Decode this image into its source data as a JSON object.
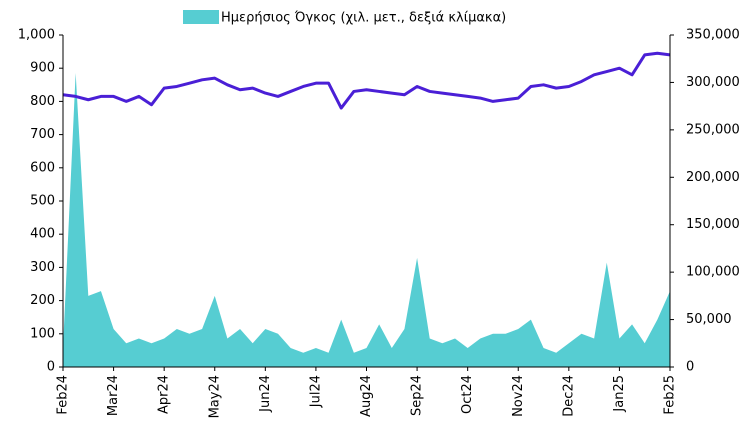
{
  "chart_data": {
    "type": "line-area",
    "legend": "top",
    "categories": [
      "Feb24",
      null,
      null,
      null,
      "Mar24",
      null,
      null,
      null,
      "Apr24",
      null,
      null,
      null,
      "May24",
      null,
      null,
      null,
      "Jun24",
      null,
      null,
      null,
      "Jul24",
      null,
      null,
      null,
      "Aug24",
      null,
      null,
      null,
      "Sep24",
      null,
      null,
      null,
      "Oct24",
      null,
      null,
      null,
      "Nov24",
      null,
      null,
      null,
      "Dec24",
      null,
      null,
      null,
      "Jan25",
      null,
      null,
      null,
      "Feb25"
    ],
    "series": [
      {
        "color": "#4a1fd6",
        "kind": "line",
        "axis": "y",
        "values": [
          820,
          815,
          805,
          815,
          815,
          800,
          815,
          790,
          840,
          845,
          855,
          865,
          870,
          850,
          835,
          840,
          825,
          815,
          830,
          845,
          855,
          855,
          780,
          830,
          835,
          830,
          825,
          820,
          845,
          830,
          825,
          820,
          815,
          810,
          800,
          805,
          810,
          845,
          850,
          840,
          845,
          860,
          880,
          890,
          900,
          880,
          940,
          945,
          940
        ]
      },
      {
        "name": "Ημερήσιος Όγκος (χιλ. μετ., δεξιά κλίμακα)",
        "color": "#56cdd2",
        "kind": "area",
        "axis": "y2",
        "values": [
          20000,
          310000,
          75000,
          80000,
          40000,
          25000,
          30000,
          25000,
          30000,
          40000,
          35000,
          40000,
          75000,
          30000,
          40000,
          25000,
          40000,
          35000,
          20000,
          15000,
          20000,
          15000,
          50000,
          15000,
          20000,
          45000,
          20000,
          40000,
          115000,
          30000,
          25000,
          30000,
          20000,
          30000,
          35000,
          35000,
          40000,
          50000,
          20000,
          15000,
          25000,
          35000,
          30000,
          110000,
          30000,
          45000,
          25000,
          50000,
          80000
        ]
      }
    ],
    "ylim": [
      0,
      1000
    ],
    "yticks": [
      0,
      100,
      200,
      300,
      400,
      500,
      600,
      700,
      800,
      900,
      {
        "value": 1000,
        "label": "1,000"
      }
    ],
    "y2lim": [
      0,
      350000
    ],
    "y2ticks": [
      0,
      {
        "value": 50000,
        "label": "50,000"
      },
      {
        "value": 100000,
        "label": "100,000"
      },
      {
        "value": 150000,
        "label": "150,000"
      },
      {
        "value": 200000,
        "label": "200,000"
      },
      {
        "value": 250000,
        "label": "250,000"
      },
      {
        "value": 300000,
        "label": "300,000"
      },
      {
        "value": 350000,
        "label": "350,000"
      }
    ]
  }
}
